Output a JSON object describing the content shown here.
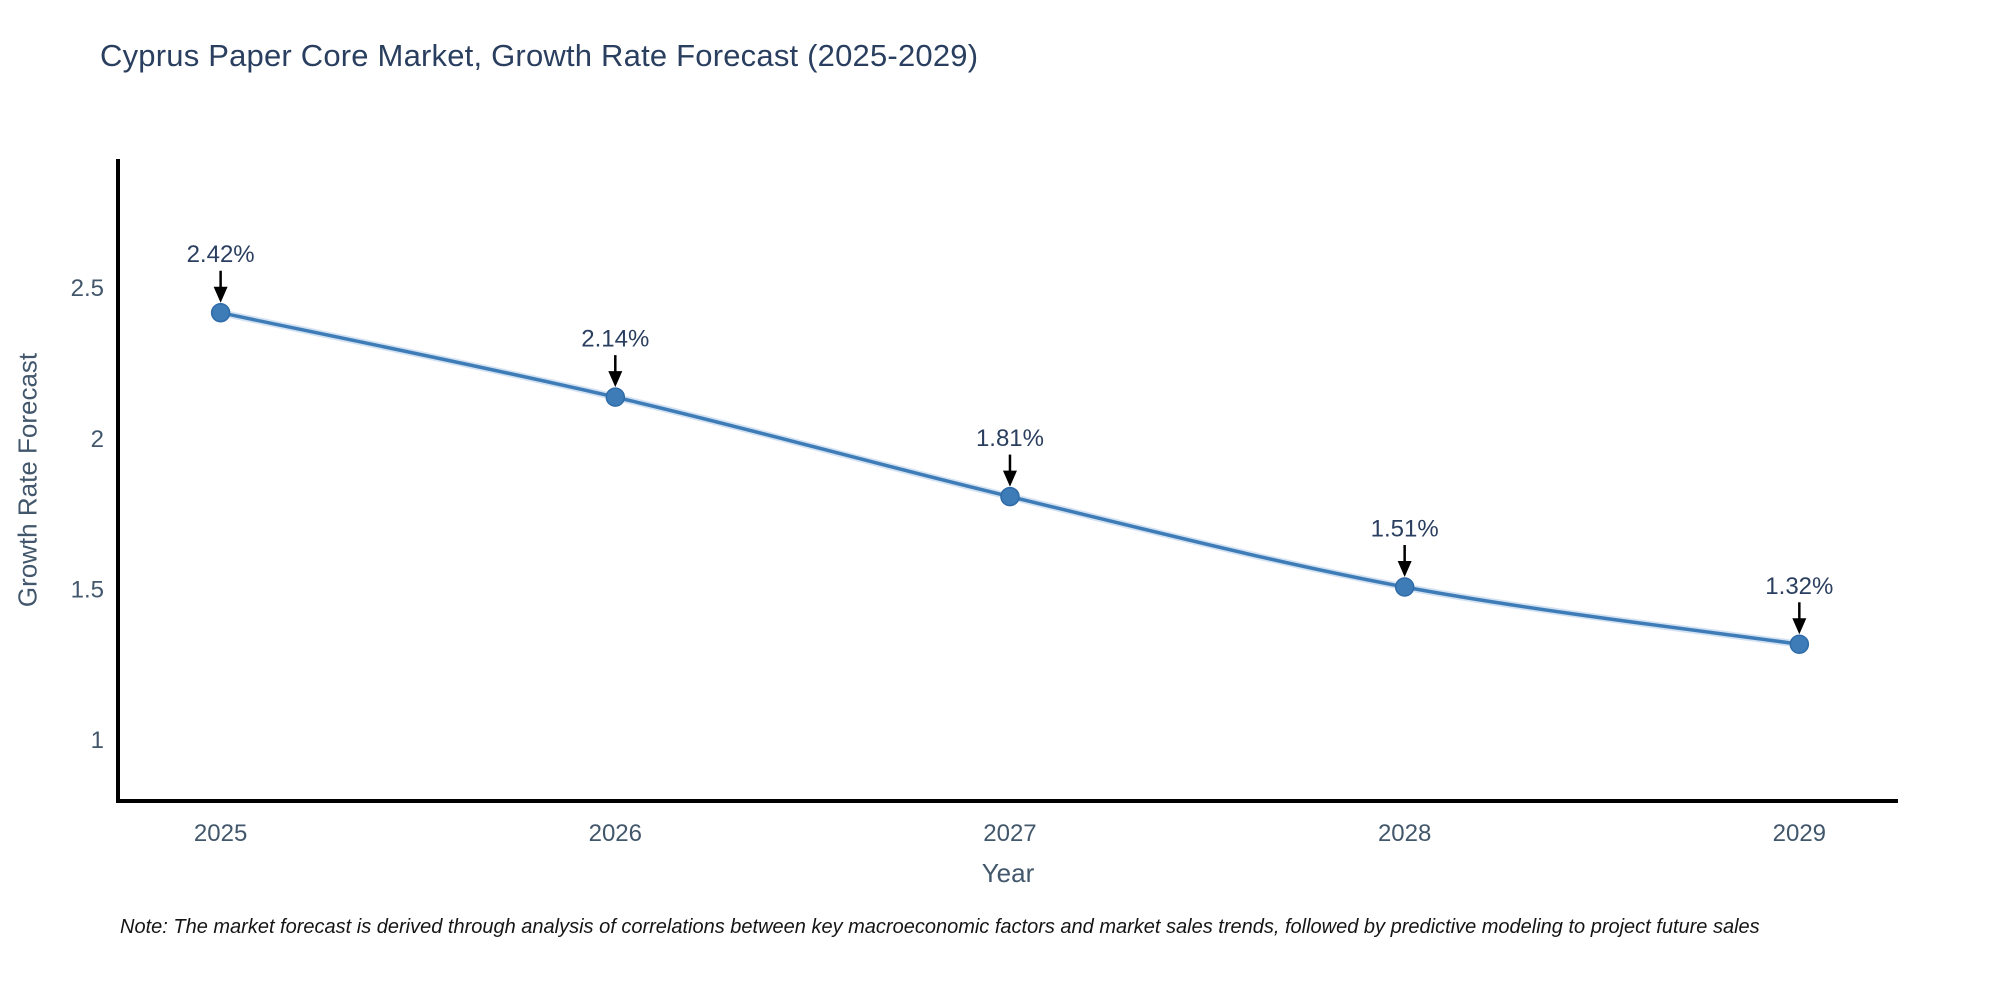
{
  "chart": {
    "title": "Cyprus Paper Core Market, Growth Rate Forecast (2025-2029)",
    "note": "Note: The market forecast is derived through analysis of correlations between key macroeconomic factors and market sales trends, followed by predictive modeling to project future sales",
    "xlabel": "Year",
    "ylabel": "Growth Rate Forecast"
  },
  "chart_data": {
    "type": "line",
    "title": "Cyprus Paper Core Market, Growth Rate Forecast (2025-2029)",
    "xlabel": "Year",
    "ylabel": "Growth Rate Forecast",
    "x": [
      2025,
      2026,
      2027,
      2028,
      2029
    ],
    "values": [
      2.42,
      2.14,
      1.81,
      1.51,
      1.32
    ],
    "point_labels": [
      "2.42%",
      "2.14%",
      "1.81%",
      "1.51%",
      "1.32%"
    ],
    "xtick_labels": [
      "2025",
      "2026",
      "2027",
      "2028",
      "2029"
    ],
    "yticks": [
      1,
      1.5,
      2,
      2.5
    ],
    "ytick_labels": [
      "1",
      "1.5",
      "2",
      "2.5"
    ],
    "xlim": [
      2024.74,
      2029.25
    ],
    "ylim": [
      0.8,
      2.93
    ],
    "grid": false,
    "legend": null,
    "colors": {
      "line": "#3e7cb8",
      "line_halo": "#aecbe8",
      "marker": "#3e7cb8",
      "marker_edge": "#2f6ba8",
      "annotation_text": "#2a3f5f",
      "annotation_arrow": "#000000",
      "axis_spine": "#000000",
      "tick_text": "#42576b"
    }
  }
}
